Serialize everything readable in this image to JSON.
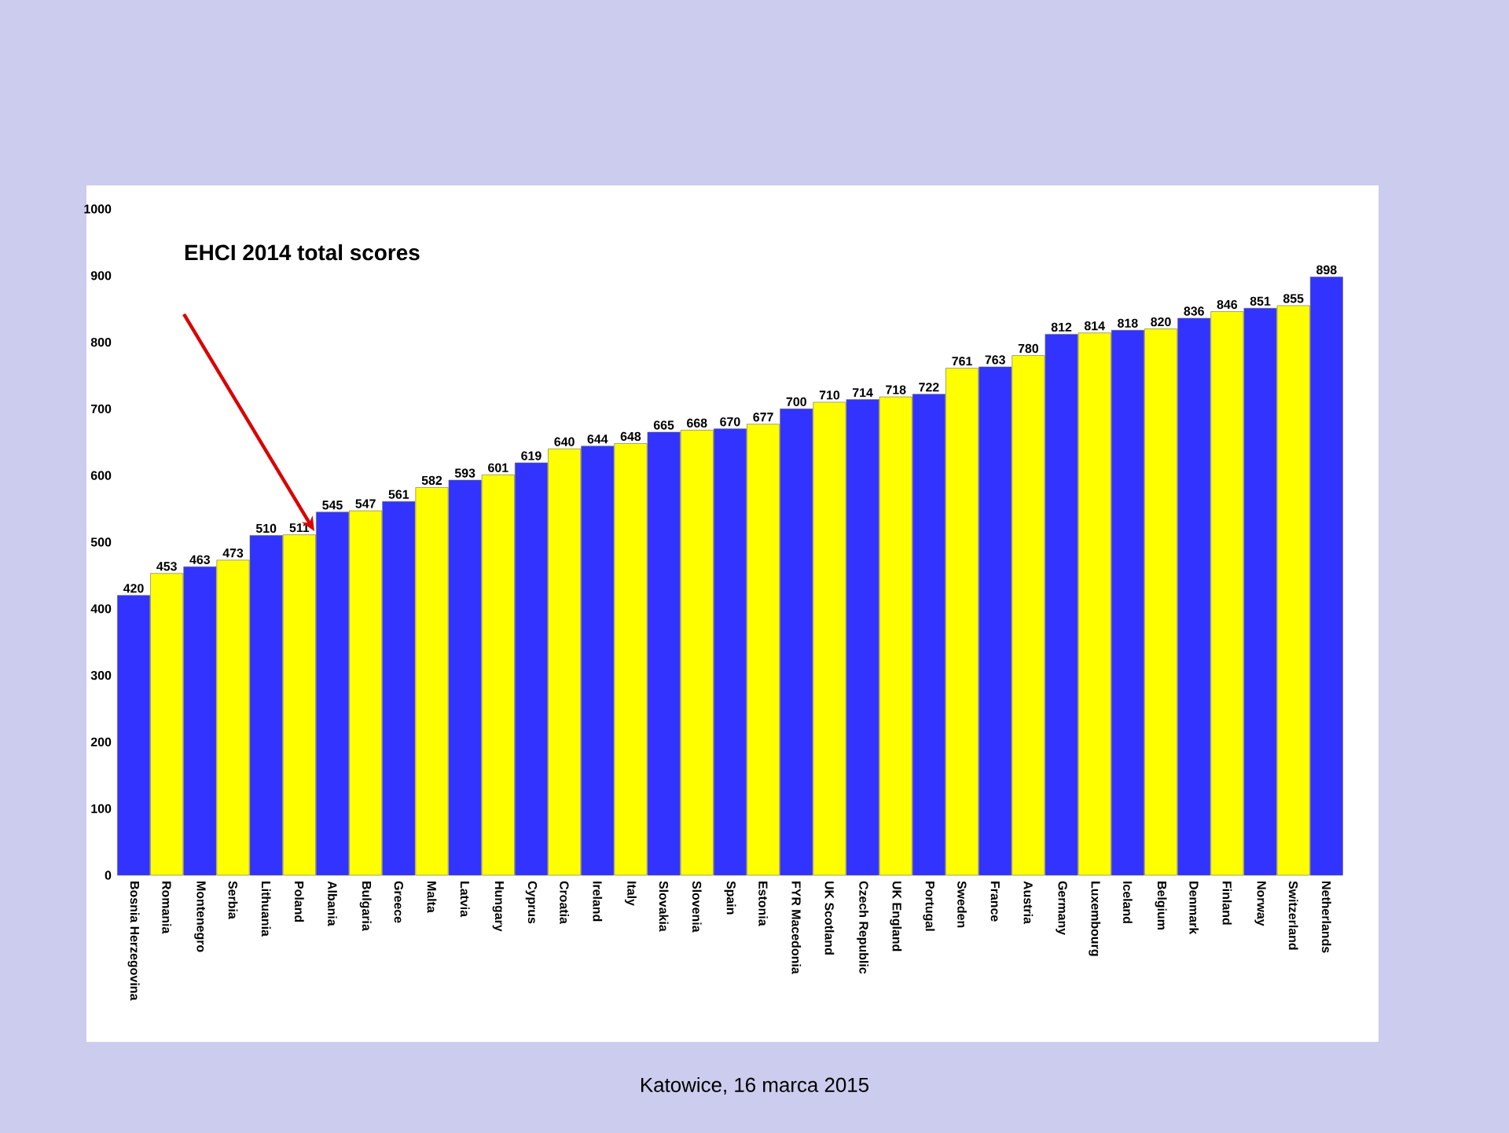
{
  "chart_data": {
    "type": "bar",
    "title": "EHCI 2014 total scores",
    "categories": [
      "Bosnia Herzegovina",
      "Romania",
      "Montenegro",
      "Serbia",
      "Lithuania",
      "Poland",
      "Albania",
      "Bulgaria",
      "Greece",
      "Malta",
      "Latvia",
      "Hungary",
      "Cyprus",
      "Croatia",
      "Ireland",
      "Italy",
      "Slovakia",
      "Slovenia",
      "Spain",
      "Estonia",
      "FYR Macedonia",
      "UK Scotland",
      "Czech Republic",
      "UK England",
      "Portugal",
      "Sweden",
      "France",
      "Austria",
      "Germany",
      "Luxembourg",
      "Iceland",
      "Belgium",
      "Denmark",
      "Finland",
      "Norway",
      "Switzerland",
      "Netherlands"
    ],
    "values": [
      420,
      453,
      463,
      473,
      510,
      511,
      545,
      547,
      561,
      582,
      593,
      601,
      619,
      640,
      644,
      648,
      665,
      668,
      670,
      677,
      700,
      710,
      714,
      718,
      722,
      761,
      763,
      780,
      812,
      814,
      818,
      820,
      836,
      846,
      851,
      855,
      898
    ],
    "colors": [
      "#3333ff",
      "#ffff00",
      "#3333ff",
      "#ffff00",
      "#3333ff",
      "#ffff00",
      "#3333ff",
      "#ffff00",
      "#3333ff",
      "#ffff00",
      "#3333ff",
      "#ffff00",
      "#3333ff",
      "#ffff00",
      "#3333ff",
      "#ffff00",
      "#3333ff",
      "#ffff00",
      "#3333ff",
      "#ffff00",
      "#3333ff",
      "#ffff00",
      "#3333ff",
      "#ffff00",
      "#3333ff",
      "#ffff00",
      "#3333ff",
      "#ffff00",
      "#3333ff",
      "#ffff00",
      "#3333ff",
      "#ffff00",
      "#3333ff",
      "#ffff00",
      "#3333ff",
      "#ffff00",
      "#3333ff"
    ],
    "data_labels": true,
    "ylim": [
      0,
      1000
    ],
    "yticks": [
      0,
      100,
      200,
      300,
      400,
      500,
      600,
      700,
      800,
      900,
      1000
    ],
    "grid": false,
    "annotations": [
      "Katowice, 16 marca 2015"
    ]
  }
}
